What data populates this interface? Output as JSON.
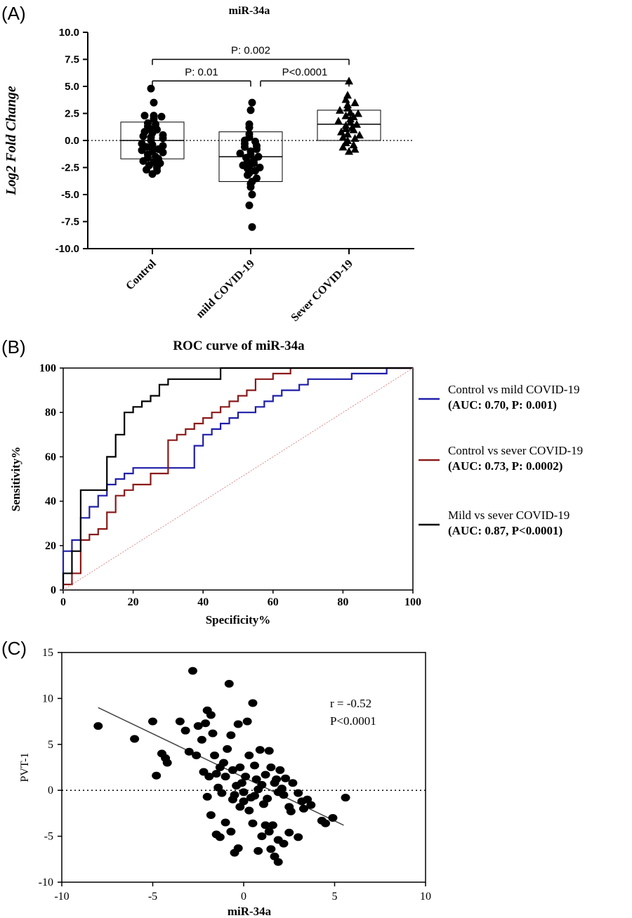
{
  "chart_data": [
    {
      "panel": "(A)",
      "type": "scatter",
      "title": "miR-34a",
      "ylabel": "Log2 Fold Change",
      "ylim": [
        -10,
        10
      ],
      "yticks": [
        "10.0",
        "7.5",
        "5.0",
        "2.5",
        "0.0",
        "-2.5",
        "-5.0",
        "-7.5",
        "-10.0"
      ],
      "yvals": [
        10,
        7.5,
        5,
        2.5,
        0,
        -2.5,
        -5,
        -7.5,
        -10
      ],
      "categories": [
        "Control",
        "mild COVID-19",
        "Sever COVID-19"
      ],
      "groups": [
        {
          "name": "Control",
          "marker": "circle",
          "mean": 0,
          "sd_upper": 1.7,
          "sd_lower": -1.7,
          "values": [
            4.8,
            3.5,
            2.3,
            2.3,
            2.2,
            2.0,
            1.6,
            1.5,
            1.3,
            1.2,
            1.1,
            1.0,
            0.8,
            0.7,
            0.5,
            0.4,
            0.3,
            0.2,
            0.0,
            -0.3,
            -0.4,
            -0.5,
            -0.6,
            -0.8,
            -0.9,
            -1.0,
            -1.1,
            -1.3,
            -1.5,
            -1.6,
            -1.7,
            -1.9,
            -2.0,
            -2.1,
            -2.3,
            -2.5,
            -2.7,
            -2.8,
            -3.1
          ]
        },
        {
          "name": "mild COVID-19",
          "marker": "circle",
          "mean": -1.5,
          "sd_upper": 0.8,
          "sd_lower": -3.8,
          "values": [
            3.5,
            2.8,
            1.5,
            1.2,
            0.6,
            0.3,
            0.0,
            -0.1,
            -0.3,
            -0.5,
            -0.6,
            -0.8,
            -1.0,
            -1.2,
            -1.3,
            -1.5,
            -1.6,
            -1.8,
            -2.0,
            -2.1,
            -2.3,
            -2.4,
            -2.5,
            -2.6,
            -2.8,
            -3.0,
            -3.2,
            -3.5,
            -3.8,
            -4.0,
            -4.3,
            -5.0,
            -6.0,
            -8.0
          ]
        },
        {
          "name": "Sever COVID-19",
          "marker": "triangle",
          "mean": 1.5,
          "sd_upper": 2.8,
          "sd_lower": 0.0,
          "values": [
            5.5,
            4.2,
            3.8,
            3.5,
            3.3,
            3.0,
            2.8,
            2.6,
            2.5,
            2.3,
            2.2,
            2.0,
            1.8,
            1.7,
            1.5,
            1.4,
            1.2,
            1.1,
            1.0,
            0.8,
            0.6,
            0.5,
            0.3,
            0.2,
            0.0,
            -0.2,
            -0.4,
            -0.6,
            -0.8,
            -1.0
          ]
        }
      ],
      "comparisons": [
        {
          "label": "P: 0.002",
          "from": 0,
          "to": 2,
          "y": 7.5
        },
        {
          "label": "P: 0.01",
          "from": 0,
          "to": 1,
          "y": 5.5
        },
        {
          "label": "P<0.0001",
          "from": 1,
          "to": 2,
          "y": 5.5
        }
      ]
    },
    {
      "panel": "(B)",
      "type": "line",
      "title": "ROC curve of miR-34a",
      "xlabel": "Specificity%",
      "ylabel": "Sensitivity%",
      "xlim": [
        0,
        100
      ],
      "ylim": [
        0,
        100
      ],
      "xticks": [
        "0",
        "20",
        "40",
        "60",
        "80",
        "100"
      ],
      "yticks": [
        "0",
        "20",
        "40",
        "60",
        "80",
        "100"
      ],
      "series": [
        {
          "name": "Control vs mild COVID-19",
          "detail": "(AUC: 0.70, P: 0.001)",
          "color": "#1f1fa8",
          "x": [
            0,
            0,
            2.5,
            2.5,
            5,
            5,
            7.5,
            7.5,
            10,
            10,
            12.5,
            12.5,
            15,
            15,
            17.5,
            17.5,
            20,
            20,
            37.5,
            37.5,
            40,
            40,
            42.5,
            42.5,
            45,
            45,
            47.5,
            47.5,
            50,
            50,
            55,
            55,
            57.5,
            57.5,
            60,
            60,
            62.5,
            62.5,
            67.5,
            67.5,
            70,
            70,
            82.5,
            82.5,
            92.5,
            92.5,
            97.5,
            97.5,
            100
          ],
          "y": [
            0,
            17.5,
            17.5,
            22.5,
            22.5,
            32.5,
            32.5,
            37.5,
            37.5,
            42.5,
            42.5,
            47.5,
            47.5,
            50,
            50,
            52.5,
            52.5,
            55,
            55,
            65,
            65,
            70,
            70,
            72.5,
            72.5,
            75,
            75,
            77.5,
            77.5,
            80,
            80,
            82.5,
            82.5,
            85,
            85,
            87.5,
            87.5,
            90,
            90,
            92.5,
            92.5,
            95,
            95,
            97.5,
            97.5,
            100,
            100,
            100,
            100
          ]
        },
        {
          "name": "Control vs sever COVID-19",
          "detail": "(AUC: 0.73, P: 0.0002)",
          "color": "#8b1a1a",
          "x": [
            0,
            2.5,
            2.5,
            5,
            5,
            7.5,
            7.5,
            10,
            10,
            12.5,
            12.5,
            15,
            15,
            17.5,
            17.5,
            20,
            20,
            25,
            25,
            30,
            30,
            32.5,
            32.5,
            35,
            35,
            37.5,
            37.5,
            40,
            40,
            42.5,
            42.5,
            45,
            45,
            47.5,
            47.5,
            50,
            50,
            52.5,
            52.5,
            55,
            55,
            60,
            60,
            65,
            65,
            67.5,
            67.5,
            100
          ],
          "y": [
            2.5,
            2.5,
            7.5,
            7.5,
            22.5,
            22.5,
            25,
            25,
            27.5,
            27.5,
            35,
            35,
            42.5,
            42.5,
            45,
            45,
            47.5,
            47.5,
            52.5,
            52.5,
            67.5,
            67.5,
            70,
            70,
            72.5,
            72.5,
            75,
            75,
            77.5,
            77.5,
            80,
            80,
            82.5,
            82.5,
            85,
            85,
            87.5,
            87.5,
            90,
            90,
            95,
            95,
            97.5,
            97.5,
            100,
            100,
            100,
            100
          ]
        },
        {
          "name": "Mild vs sever COVID-19",
          "detail": "(AUC: 0.87, P<0.0001)",
          "color": "#000000",
          "x": [
            0,
            0,
            2.5,
            2.5,
            5,
            5,
            12.5,
            12.5,
            15,
            15,
            17.5,
            17.5,
            20,
            20,
            22.5,
            22.5,
            25,
            25,
            27.5,
            27.5,
            30,
            30,
            45,
            45,
            100
          ],
          "y": [
            0,
            7.5,
            7.5,
            17.5,
            17.5,
            45,
            45,
            60,
            60,
            70,
            70,
            80,
            80,
            82.5,
            82.5,
            85,
            85,
            87.5,
            87.5,
            92.5,
            92.5,
            95,
            95,
            100,
            100
          ]
        },
        {
          "name": "reference",
          "color": "#d98a8a",
          "dashed": true,
          "x": [
            0,
            100
          ],
          "y": [
            0,
            100
          ]
        }
      ]
    },
    {
      "panel": "(C)",
      "type": "scatter",
      "xlabel": "miR-34a",
      "ylabel": "PVT-1",
      "xlim": [
        -10,
        10
      ],
      "ylim": [
        -10,
        15
      ],
      "xticks": [
        "-10",
        "-5",
        "0",
        "5",
        "10"
      ],
      "yticks": [
        "15",
        "10",
        "5",
        "0",
        "-5",
        "-10"
      ],
      "annotation": {
        "r": "r = -0.52",
        "p": "P<0.0001"
      },
      "fit": {
        "x": [
          -8,
          5.5
        ],
        "y": [
          9,
          -3.8
        ]
      },
      "points": [
        [
          -8,
          7
        ],
        [
          -6,
          5.6
        ],
        [
          -5,
          7.5
        ],
        [
          -4.5,
          4
        ],
        [
          -4.3,
          3.5
        ],
        [
          -4.2,
          3
        ],
        [
          -4.8,
          1.6
        ],
        [
          -3.5,
          7.5
        ],
        [
          -3.2,
          6.5
        ],
        [
          -3,
          4.2
        ],
        [
          -2.8,
          13
        ],
        [
          -2.6,
          3.8
        ],
        [
          -2.5,
          7
        ],
        [
          -2.3,
          5.5
        ],
        [
          -2.2,
          2
        ],
        [
          -2.1,
          7.3
        ],
        [
          -2,
          8.7
        ],
        [
          -1.9,
          1.5
        ],
        [
          -1.8,
          8.2
        ],
        [
          -1.7,
          6.2
        ],
        [
          -1.6,
          3.8
        ],
        [
          -1.5,
          1.8
        ],
        [
          -1.4,
          0.3
        ],
        [
          -1.3,
          2.5
        ],
        [
          -1.2,
          -0.3
        ],
        [
          -1.1,
          3
        ],
        [
          -1,
          1.5
        ],
        [
          -0.9,
          4.5
        ],
        [
          -0.8,
          11.6
        ],
        [
          -0.7,
          6
        ],
        [
          -0.6,
          2.2
        ],
        [
          -0.5,
          -0.5
        ],
        [
          -0.4,
          0.5
        ],
        [
          -0.3,
          7.2
        ],
        [
          -0.2,
          2.5
        ],
        [
          -0.1,
          0.8
        ],
        [
          0,
          -0.2
        ],
        [
          0.1,
          1.5
        ],
        [
          0.2,
          7.5
        ],
        [
          0.3,
          3.8
        ],
        [
          0.4,
          -0.8
        ],
        [
          0.5,
          9.5
        ],
        [
          0.6,
          2.7
        ],
        [
          0.7,
          1.2
        ],
        [
          0.8,
          0.1
        ],
        [
          0.9,
          4.4
        ],
        [
          1,
          0.6
        ],
        [
          1.1,
          -1.5
        ],
        [
          1.2,
          1.7
        ],
        [
          1.3,
          -0.9
        ],
        [
          1.4,
          4.3
        ],
        [
          1.5,
          2.5
        ],
        [
          1.6,
          -3.8
        ],
        [
          1.7,
          0.8
        ],
        [
          1.8,
          1.2
        ],
        [
          1.9,
          -5.4
        ],
        [
          2,
          2.2
        ],
        [
          2.1,
          0.2
        ],
        [
          2.2,
          -0.5
        ],
        [
          2.3,
          1.3
        ],
        [
          2.5,
          -1.8
        ],
        [
          2.7,
          0.8
        ],
        [
          3,
          -0.3
        ],
        [
          3.2,
          -1.2
        ],
        [
          3.3,
          -2
        ],
        [
          3.5,
          -1
        ],
        [
          3.7,
          -1.6
        ],
        [
          4.3,
          -3.3
        ],
        [
          4.5,
          -3.6
        ],
        [
          4.9,
          -3
        ],
        [
          5.6,
          -0.8
        ],
        [
          -2,
          -0.7
        ],
        [
          -1.8,
          -2.7
        ],
        [
          -1.5,
          -4.8
        ],
        [
          -1.3,
          -5.1
        ],
        [
          -1,
          -3.5
        ],
        [
          -0.7,
          -4.5
        ],
        [
          -0.5,
          -6.8
        ],
        [
          -0.3,
          -6.3
        ],
        [
          -0.2,
          -1.8
        ],
        [
          0.3,
          -2.2
        ],
        [
          0.5,
          -3.6
        ],
        [
          0.8,
          -6.6
        ],
        [
          1,
          -5
        ],
        [
          1.2,
          -3.8
        ],
        [
          1.4,
          -4.5
        ],
        [
          1.5,
          -6.4
        ],
        [
          1.7,
          -7.2
        ],
        [
          1.9,
          -7.8
        ],
        [
          2.2,
          -5.8
        ],
        [
          2.5,
          -4.6
        ],
        [
          3,
          -5.1
        ],
        [
          0,
          -1.2
        ],
        [
          -0.6,
          -1
        ],
        [
          0.6,
          -0.6
        ],
        [
          1.9,
          -0.2
        ],
        [
          2.6,
          -2.3
        ]
      ]
    }
  ],
  "colors": {
    "axis": "#000000",
    "grid_ref": "#555555"
  }
}
